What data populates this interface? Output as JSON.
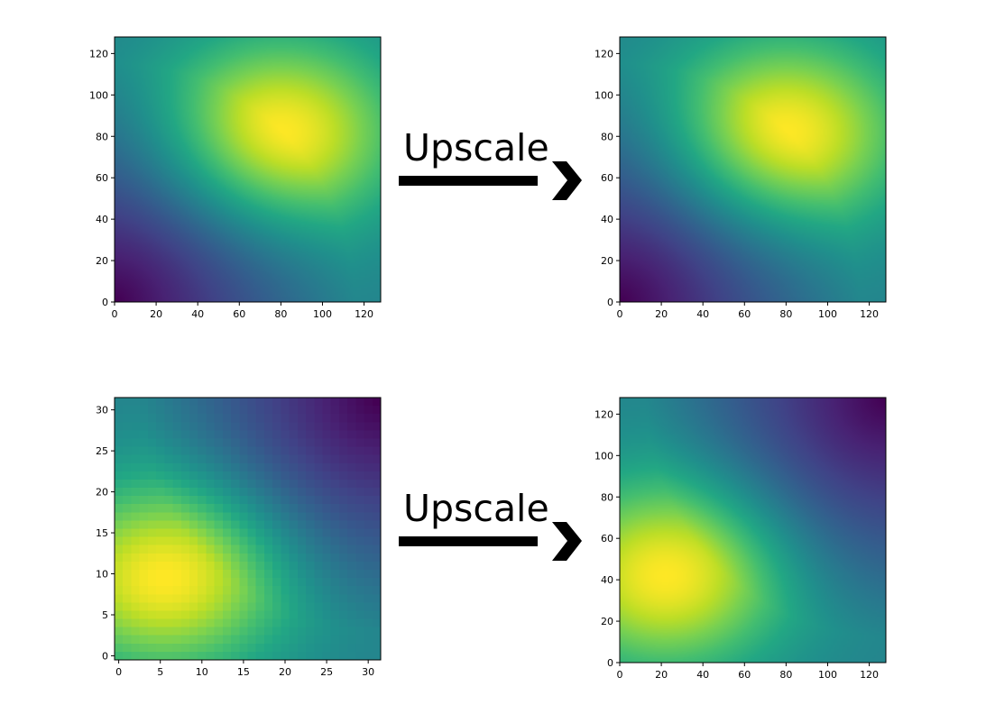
{
  "arrows": [
    {
      "label": "Upscale"
    },
    {
      "label": "Upscale"
    }
  ],
  "chart_data": [
    {
      "type": "heatmap",
      "colormap": "viridis",
      "grid_size": 128,
      "xlim": [
        0,
        128
      ],
      "ylim": [
        0,
        128
      ],
      "xticks": [
        0,
        20,
        40,
        60,
        80,
        100,
        120
      ],
      "yticks": [
        0,
        20,
        40,
        60,
        80,
        100,
        120
      ],
      "peak": {
        "x": 80,
        "y": 82
      },
      "low_corner": "bottom-left",
      "grid": false
    },
    {
      "type": "heatmap",
      "colormap": "viridis",
      "grid_size": 128,
      "xlim": [
        0,
        128
      ],
      "ylim": [
        0,
        128
      ],
      "xticks": [
        0,
        20,
        40,
        60,
        80,
        100,
        120
      ],
      "yticks": [
        0,
        20,
        40,
        60,
        80,
        100,
        120
      ],
      "peak": {
        "x": 80,
        "y": 82
      },
      "low_corner": "bottom-left",
      "grid": false
    },
    {
      "type": "heatmap",
      "colormap": "viridis",
      "grid_size": 32,
      "xlim": [
        -0.5,
        31.5
      ],
      "ylim": [
        -0.5,
        31.5
      ],
      "xticks": [
        0,
        5,
        10,
        15,
        20,
        25,
        30
      ],
      "yticks": [
        0,
        5,
        10,
        15,
        20,
        25,
        30
      ],
      "peak": {
        "x": 6,
        "y": 10
      },
      "low_corner": "top-right",
      "grid": false
    },
    {
      "type": "heatmap",
      "colormap": "viridis",
      "grid_size": 128,
      "xlim": [
        0,
        128
      ],
      "ylim": [
        0,
        128
      ],
      "xticks": [
        0,
        20,
        40,
        60,
        80,
        100,
        120
      ],
      "yticks": [
        0,
        20,
        40,
        60,
        80,
        100,
        120
      ],
      "peak": {
        "x": 22,
        "y": 42
      },
      "low_corner": "top-right",
      "grid": false
    }
  ]
}
